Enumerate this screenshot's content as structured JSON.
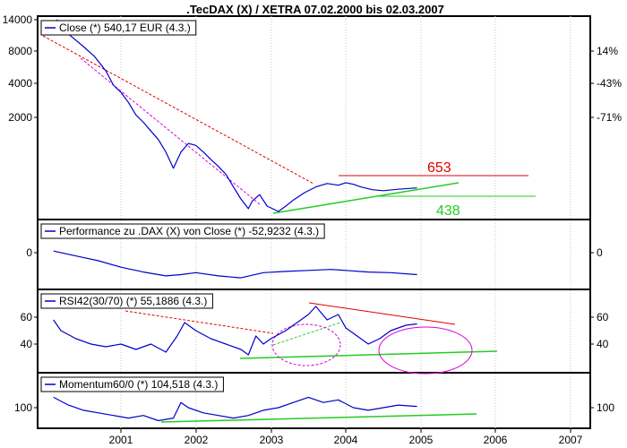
{
  "chart_data": {
    "type": "line",
    "title": ".TecDAX (X) / XETRA 07.02.2000 bis 02.03.2007",
    "x_axis": {
      "tick_labels": [
        "2001",
        "2002",
        "2003",
        "2004",
        "2005",
        "2006",
        "2007"
      ]
    },
    "colors": {
      "series": "#0000cc",
      "red_line": "#dd0000",
      "green_line": "#22cc22",
      "magenta": "#dd00dd",
      "panel_border": "#000000"
    },
    "panels": [
      {
        "name": "price",
        "legend": "Close (*) 540,17 EUR (4.3.)",
        "left_ticks": [
          "14000",
          "8000",
          "4000",
          "2000"
        ],
        "right_ticks": [
          "14%",
          "-43%",
          "-71%"
        ],
        "scale": "log",
        "levels": [
          {
            "label": "653",
            "color": "#dd0000"
          },
          {
            "label": "438",
            "color": "#22cc22"
          }
        ],
        "series_points": [
          [
            2000.1,
            12000
          ],
          [
            2000.15,
            13500
          ],
          [
            2000.25,
            11000
          ],
          [
            2000.35,
            9800
          ],
          [
            2000.5,
            8200
          ],
          [
            2000.65,
            6800
          ],
          [
            2000.8,
            5200
          ],
          [
            2000.9,
            4000
          ],
          [
            2001.0,
            3500
          ],
          [
            2001.1,
            2900
          ],
          [
            2001.2,
            2300
          ],
          [
            2001.3,
            2000
          ],
          [
            2001.4,
            1700
          ],
          [
            2001.5,
            1450
          ],
          [
            2001.6,
            1150
          ],
          [
            2001.7,
            850
          ],
          [
            2001.8,
            1150
          ],
          [
            2001.9,
            1350
          ],
          [
            2002.0,
            1300
          ],
          [
            2002.1,
            1150
          ],
          [
            2002.2,
            1000
          ],
          [
            2002.3,
            880
          ],
          [
            2002.4,
            760
          ],
          [
            2002.5,
            600
          ],
          [
            2002.6,
            480
          ],
          [
            2002.7,
            400
          ],
          [
            2002.75,
            460
          ],
          [
            2002.85,
            520
          ],
          [
            2002.95,
            420
          ],
          [
            2003.1,
            380
          ],
          [
            2003.2,
            420
          ],
          [
            2003.3,
            470
          ],
          [
            2003.45,
            540
          ],
          [
            2003.6,
            600
          ],
          [
            2003.75,
            640
          ],
          [
            2003.9,
            620
          ],
          [
            2004.0,
            650
          ],
          [
            2004.1,
            630
          ],
          [
            2004.2,
            600
          ],
          [
            2004.35,
            570
          ],
          [
            2004.5,
            560
          ],
          [
            2004.7,
            575
          ],
          [
            2004.95,
            590
          ]
        ]
      },
      {
        "name": "performance",
        "legend": "Performance zu .DAX (X) von Close (*) -52,9232 (4.3.)",
        "left_ticks": [
          "0"
        ],
        "right_ticks": [
          "0"
        ],
        "series_points": [
          [
            2000.1,
            0.05
          ],
          [
            2000.3,
            -0.05
          ],
          [
            2000.5,
            -0.15
          ],
          [
            2000.7,
            -0.25
          ],
          [
            2001.0,
            -0.45
          ],
          [
            2001.3,
            -0.6
          ],
          [
            2001.6,
            -0.72
          ],
          [
            2001.8,
            -0.68
          ],
          [
            2002.0,
            -0.62
          ],
          [
            2002.3,
            -0.72
          ],
          [
            2002.6,
            -0.78
          ],
          [
            2002.9,
            -0.62
          ],
          [
            2003.2,
            -0.58
          ],
          [
            2003.5,
            -0.55
          ],
          [
            2003.8,
            -0.52
          ],
          [
            2004.0,
            -0.55
          ],
          [
            2004.3,
            -0.6
          ],
          [
            2004.6,
            -0.62
          ],
          [
            2004.95,
            -0.68
          ]
        ]
      },
      {
        "name": "rsi",
        "legend": "RSI42(30/70) (*) 55,1886 (4.3.)",
        "left_ticks": [
          "60",
          "40"
        ],
        "right_ticks": [
          "60",
          "40"
        ],
        "series_points": [
          [
            2000.1,
            58
          ],
          [
            2000.2,
            50
          ],
          [
            2000.4,
            44
          ],
          [
            2000.6,
            40
          ],
          [
            2000.8,
            38
          ],
          [
            2001.0,
            40
          ],
          [
            2001.2,
            36
          ],
          [
            2001.4,
            40
          ],
          [
            2001.6,
            34
          ],
          [
            2001.75,
            46
          ],
          [
            2001.85,
            56
          ],
          [
            2002.0,
            50
          ],
          [
            2002.2,
            44
          ],
          [
            2002.4,
            40
          ],
          [
            2002.6,
            36
          ],
          [
            2002.7,
            32
          ],
          [
            2002.8,
            46
          ],
          [
            2002.9,
            40
          ],
          [
            2003.0,
            44
          ],
          [
            2003.2,
            50
          ],
          [
            2003.35,
            56
          ],
          [
            2003.5,
            62
          ],
          [
            2003.6,
            68
          ],
          [
            2003.75,
            58
          ],
          [
            2003.9,
            62
          ],
          [
            2004.0,
            52
          ],
          [
            2004.15,
            46
          ],
          [
            2004.3,
            40
          ],
          [
            2004.45,
            44
          ],
          [
            2004.6,
            50
          ],
          [
            2004.8,
            54
          ],
          [
            2004.95,
            55
          ]
        ]
      },
      {
        "name": "momentum",
        "legend": "Momentum60/0 (*) 104,518 (4.3.)",
        "left_ticks": [
          "100"
        ],
        "right_ticks": [
          "100"
        ],
        "series_points": [
          [
            2000.1,
            108
          ],
          [
            2000.3,
            102
          ],
          [
            2000.5,
            98
          ],
          [
            2000.7,
            96
          ],
          [
            2000.9,
            94
          ],
          [
            2001.1,
            92
          ],
          [
            2001.3,
            94
          ],
          [
            2001.5,
            90
          ],
          [
            2001.7,
            92
          ],
          [
            2001.8,
            104
          ],
          [
            2001.9,
            100
          ],
          [
            2002.1,
            96
          ],
          [
            2002.3,
            94
          ],
          [
            2002.5,
            92
          ],
          [
            2002.7,
            94
          ],
          [
            2002.9,
            98
          ],
          [
            2003.1,
            100
          ],
          [
            2003.3,
            104
          ],
          [
            2003.5,
            108
          ],
          [
            2003.7,
            104
          ],
          [
            2003.9,
            106
          ],
          [
            2004.1,
            100
          ],
          [
            2004.3,
            98
          ],
          [
            2004.5,
            100
          ],
          [
            2004.7,
            102
          ],
          [
            2004.95,
            101
          ]
        ]
      }
    ]
  }
}
